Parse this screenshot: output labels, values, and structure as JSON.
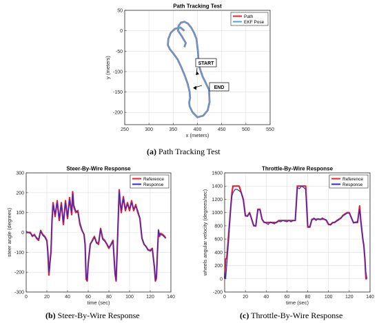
{
  "colors": {
    "path": "#e8202a",
    "ekf": "#4aa6dd",
    "reference": "#e8202a",
    "response": "#2a2ad8",
    "axis": "#262626",
    "grid": "#dedede"
  },
  "chart_data": [
    {
      "id": "a",
      "type": "line",
      "title": "Path Tracking Test",
      "xlabel": "x (meters)",
      "ylabel": "y (meters)",
      "xlim": [
        250,
        550
      ],
      "ylim": [
        -230,
        50
      ],
      "xticks": [
        250,
        300,
        350,
        400,
        450,
        500,
        550
      ],
      "yticks": [
        50,
        0,
        -50,
        -100,
        -150,
        -200
      ],
      "grid": true,
      "legend": "top-right",
      "series": [
        {
          "name": "Path",
          "color": "#e8202a"
        },
        {
          "name": "EKF Pose",
          "color": "#4aa6dd"
        }
      ],
      "x": [
        373,
        376,
        372,
        366,
        360,
        361,
        366,
        373,
        380,
        387,
        393,
        398,
        401,
        403,
        410,
        418,
        424,
        425,
        421,
        412,
        400,
        390,
        384,
        383,
        385,
        384,
        380,
        374,
        367,
        359,
        350,
        343,
        339,
        340,
        345,
        354,
        365,
        373
      ],
      "y": [
        -40,
        -30,
        -22,
        -10,
        0,
        12,
        20,
        22,
        18,
        8,
        -5,
        -20,
        -50,
        -85,
        -110,
        -130,
        -145,
        -175,
        -195,
        -208,
        -212,
        -200,
        -185,
        -175,
        -165,
        -150,
        -130,
        -110,
        -90,
        -70,
        -55,
        -45,
        -35,
        -20,
        -5,
        5,
        8,
        0
      ],
      "annotations": [
        "START",
        "END"
      ],
      "caption_label": "(a)",
      "caption_text": "Path Tracking Test"
    },
    {
      "id": "b",
      "type": "line",
      "title": "Steer-By-Wire Response",
      "xlabel": "time (sec)",
      "ylabel": "steer angle (degrees)",
      "xlim": [
        0,
        140
      ],
      "ylim": [
        -300,
        300
      ],
      "xticks": [
        0,
        20,
        40,
        60,
        80,
        100,
        120,
        140
      ],
      "yticks": [
        300,
        200,
        100,
        0,
        -100,
        -200,
        -300
      ],
      "grid": true,
      "legend": "top-right",
      "series": [
        {
          "name": "Reference",
          "color": "#e8202a",
          "lw": 2.2,
          "x": [
            0,
            4,
            6,
            8,
            10,
            12,
            14,
            16,
            18,
            20,
            21,
            22,
            23,
            24,
            25,
            26,
            28,
            30,
            32,
            34,
            36,
            38,
            40,
            42,
            44,
            45,
            46,
            48,
            50,
            52,
            54,
            56,
            57,
            58,
            59,
            60,
            62,
            64,
            66,
            68,
            70,
            72,
            74,
            76,
            78,
            80,
            82,
            84,
            86,
            87,
            88,
            89,
            90,
            91,
            92,
            94,
            96,
            98,
            100,
            102,
            104,
            106,
            108,
            110,
            111,
            112,
            114,
            116,
            118,
            120,
            122,
            124,
            125,
            126,
            127,
            128,
            129,
            130,
            132,
            134,
            135
          ],
          "y": [
            0,
            0,
            -20,
            -10,
            -30,
            -40,
            10,
            -10,
            -20,
            -40,
            -100,
            -215,
            -150,
            -100,
            60,
            150,
            80,
            160,
            60,
            150,
            40,
            160,
            70,
            175,
            90,
            205,
            130,
            100,
            110,
            40,
            10,
            -10,
            -60,
            -235,
            -245,
            -160,
            -60,
            -40,
            -20,
            -50,
            -60,
            20,
            -30,
            -40,
            -60,
            -80,
            -60,
            -40,
            -210,
            -245,
            -100,
            60,
            215,
            150,
            100,
            180,
            110,
            150,
            110,
            160,
            110,
            140,
            100,
            70,
            20,
            -30,
            -60,
            -70,
            -90,
            -90,
            -80,
            -175,
            -245,
            -230,
            -100,
            10,
            -20,
            -5,
            -10,
            -20,
            -30
          ]
        },
        {
          "name": "Response",
          "color": "#2a2ad8",
          "lw": 1.2,
          "x": [
            0,
            4,
            6,
            8,
            10,
            12,
            14,
            16,
            18,
            20,
            21,
            22,
            23,
            24,
            25,
            26,
            28,
            30,
            32,
            34,
            36,
            38,
            40,
            42,
            44,
            45,
            46,
            48,
            50,
            52,
            54,
            56,
            57,
            58,
            59,
            60,
            62,
            64,
            66,
            68,
            70,
            72,
            74,
            76,
            78,
            80,
            82,
            84,
            86,
            87,
            88,
            89,
            90,
            91,
            92,
            94,
            96,
            98,
            100,
            102,
            104,
            106,
            108,
            110,
            111,
            112,
            114,
            116,
            118,
            120,
            122,
            124,
            125,
            126,
            127,
            128,
            129,
            130,
            132,
            134,
            135
          ],
          "y": [
            5,
            -5,
            -15,
            -15,
            -25,
            -35,
            5,
            -15,
            -25,
            -45,
            -110,
            -200,
            -160,
            -90,
            70,
            140,
            90,
            150,
            70,
            140,
            50,
            150,
            80,
            165,
            100,
            195,
            140,
            110,
            100,
            50,
            15,
            -15,
            -70,
            -225,
            -240,
            -150,
            -55,
            -45,
            -25,
            -55,
            -50,
            15,
            -35,
            -45,
            -55,
            -75,
            -65,
            -45,
            -200,
            -240,
            -90,
            70,
            205,
            160,
            110,
            170,
            120,
            140,
            120,
            150,
            120,
            130,
            110,
            75,
            25,
            -25,
            -55,
            -75,
            -85,
            -95,
            -85,
            -165,
            -240,
            -220,
            -90,
            15,
            -15,
            -10,
            -15,
            -25,
            -25
          ]
        }
      ],
      "caption_label": "(b)",
      "caption_text": "Steer-By-Wire Response"
    },
    {
      "id": "c",
      "type": "line",
      "title": "Throttle-By-Wire Response",
      "xlabel": "time (sec)",
      "ylabel": "wheels angular velocity (degrees/sec)",
      "xlim": [
        0,
        140
      ],
      "ylim": [
        -200,
        1600
      ],
      "xticks": [
        0,
        20,
        40,
        60,
        80,
        100,
        120,
        140
      ],
      "yticks": [
        1600,
        1400,
        1200,
        1000,
        800,
        600,
        400,
        200,
        0,
        -200
      ],
      "grid": true,
      "legend": "top-right",
      "series": [
        {
          "name": "Reference",
          "color": "#e8202a",
          "lw": 2.2,
          "x": [
            0,
            1,
            2,
            3,
            4,
            5,
            6,
            7,
            8,
            10,
            12,
            14,
            16,
            18,
            20,
            22,
            24,
            26,
            28,
            30,
            32,
            34,
            36,
            38,
            40,
            42,
            44,
            46,
            48,
            50,
            52,
            54,
            56,
            58,
            60,
            62,
            64,
            66,
            68,
            70,
            72,
            74,
            76,
            78,
            80,
            82,
            84,
            86,
            88,
            90,
            92,
            94,
            96,
            98,
            100,
            102,
            104,
            106,
            108,
            110,
            112,
            114,
            116,
            118,
            120,
            122,
            124,
            126,
            128,
            130,
            131,
            132,
            133,
            134,
            135,
            136,
            137
          ],
          "y": [
            0,
            300,
            310,
            500,
            700,
            900,
            1100,
            1300,
            1400,
            1400,
            1400,
            1400,
            1300,
            1200,
            950,
            950,
            1000,
            900,
            800,
            800,
            1050,
            1050,
            900,
            850,
            850,
            850,
            850,
            850,
            850,
            850,
            880,
            880,
            880,
            880,
            880,
            880,
            880,
            880,
            880,
            1400,
            1400,
            1400,
            1400,
            1400,
            780,
            780,
            900,
            900,
            900,
            900,
            900,
            900,
            900,
            880,
            820,
            820,
            850,
            850,
            880,
            900,
            920,
            960,
            980,
            1000,
            1000,
            920,
            850,
            850,
            850,
            1100,
            900,
            750,
            600,
            500,
            300,
            0,
            0
          ]
        },
        {
          "name": "Response",
          "color": "#2a2ad8",
          "lw": 1.2,
          "x": [
            0,
            1,
            2,
            3,
            4,
            5,
            6,
            7,
            8,
            10,
            12,
            14,
            16,
            18,
            20,
            22,
            24,
            26,
            28,
            30,
            32,
            34,
            36,
            38,
            40,
            42,
            44,
            46,
            48,
            50,
            52,
            54,
            56,
            58,
            60,
            62,
            64,
            66,
            68,
            70,
            72,
            74,
            76,
            78,
            80,
            82,
            84,
            86,
            88,
            90,
            92,
            94,
            96,
            98,
            100,
            102,
            104,
            106,
            108,
            110,
            112,
            114,
            116,
            118,
            120,
            122,
            124,
            126,
            128,
            130,
            131,
            132,
            133,
            134,
            135,
            136,
            137
          ],
          "y": [
            100,
            0,
            200,
            400,
            600,
            850,
            1100,
            1250,
            1300,
            1350,
            1350,
            1330,
            1300,
            1180,
            960,
            940,
            990,
            910,
            810,
            790,
            1040,
            1040,
            890,
            860,
            840,
            820,
            860,
            840,
            830,
            860,
            870,
            860,
            880,
            870,
            860,
            880,
            860,
            880,
            880,
            1380,
            1360,
            1400,
            1380,
            1350,
            800,
            780,
            880,
            920,
            880,
            910,
            890,
            920,
            900,
            890,
            830,
            810,
            840,
            860,
            870,
            890,
            910,
            950,
            970,
            990,
            990,
            930,
            840,
            860,
            860,
            1050,
            880,
            760,
            620,
            500,
            320,
            100,
            0
          ]
        }
      ],
      "caption_label": "(c)",
      "caption_text": "Throttle-By-Wire Response"
    }
  ]
}
